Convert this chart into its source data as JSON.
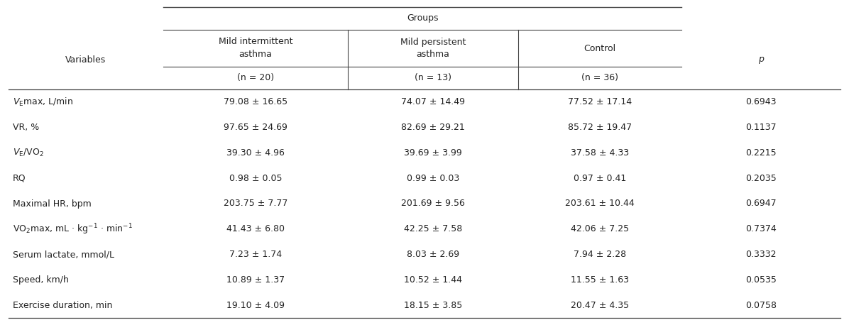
{
  "col_header_top": "Groups",
  "col_headers_line1": [
    "Variables",
    "Mild intermittent",
    "Mild persistent",
    "Control",
    "p"
  ],
  "col_headers_line2": [
    "",
    "asthma",
    "asthma",
    "",
    ""
  ],
  "subheaders": [
    "",
    "(n = 20)",
    "(n = 13)",
    "(n = 36)",
    ""
  ],
  "rows": [
    [
      "$\\mathit{V}_{\\mathrm{E}}$max, L/min",
      "79.08 ± 16.65",
      "74.07 ± 14.49",
      "77.52 ± 17.14",
      "0.6943"
    ],
    [
      "VR, %",
      "97.65 ± 24.69",
      "82.69 ± 29.21",
      "85.72 ± 19.47",
      "0.1137"
    ],
    [
      "$\\mathit{V}_{\\mathrm{E}}$/VO$_{2}$",
      "39.30 ± 4.96",
      "39.69 ± 3.99",
      "37.58 ± 4.33",
      "0.2215"
    ],
    [
      "RQ",
      "0.98 ± 0.05",
      "0.99 ± 0.03",
      "0.97 ± 0.41",
      "0.2035"
    ],
    [
      "Maximal HR, bpm",
      "203.75 ± 7.77",
      "201.69 ± 9.56",
      "203.61 ± 10.44",
      "0.6947"
    ],
    [
      "VO$_{2}$max, mL · kg$^{-1}$ · min$^{-1}$",
      "41.43 ± 6.80",
      "42.25 ± 7.58",
      "42.06 ± 7.25",
      "0.7374"
    ],
    [
      "Serum lactate, mmol/L",
      "7.23 ± 1.74",
      "8.03 ± 2.69",
      "7.94 ± 2.28",
      "0.3332"
    ],
    [
      "Speed, km/h",
      "10.89 ± 1.37",
      "10.52 ± 1.44",
      "11.55 ± 1.63",
      "0.0535"
    ],
    [
      "Exercise duration, min",
      "19.10 ± 4.09",
      "18.15 ± 3.85",
      "20.47 ± 4.35",
      "0.0758"
    ]
  ],
  "bg_color": "#ffffff",
  "text_color": "#222222",
  "line_color": "#444444",
  "header_fontsize": 9.0,
  "cell_fontsize": 9.0,
  "fig_width": 11.96,
  "fig_height": 4.58,
  "dpi": 100
}
